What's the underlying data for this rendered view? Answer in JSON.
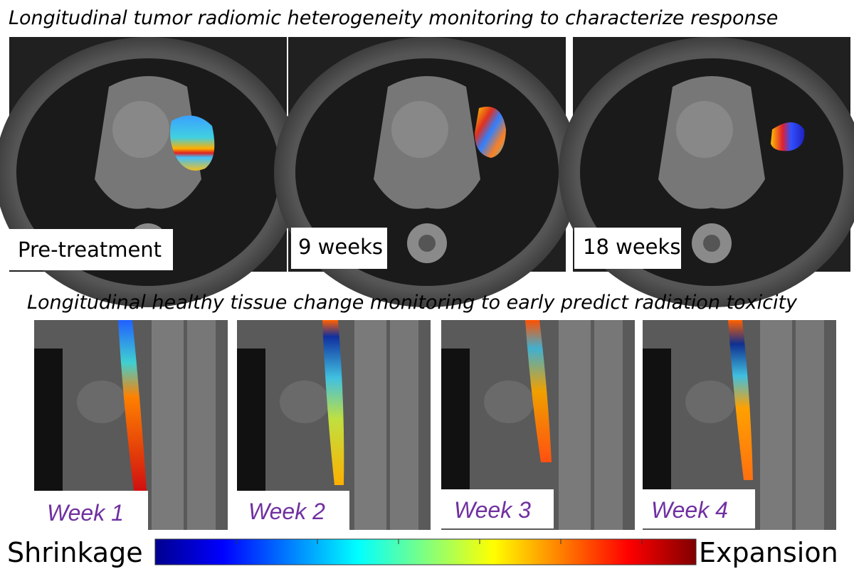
{
  "top": {
    "title": "Longitudinal tumor radiomic heterogeneity monitoring to characterize response",
    "panels": [
      {
        "label": "Pre-treatment"
      },
      {
        "label": "9 weeks"
      },
      {
        "label": "18 weeks"
      }
    ]
  },
  "bottom": {
    "title": "Longitudinal healthy tissue change monitoring to early predict radiation toxicity",
    "panels": [
      {
        "label": "Week 1"
      },
      {
        "label": "Week 2"
      },
      {
        "label": "Week 3"
      },
      {
        "label": "Week 4"
      }
    ]
  },
  "colorbar": {
    "left_label": "Shrinkage",
    "right_label": "Expansion"
  }
}
